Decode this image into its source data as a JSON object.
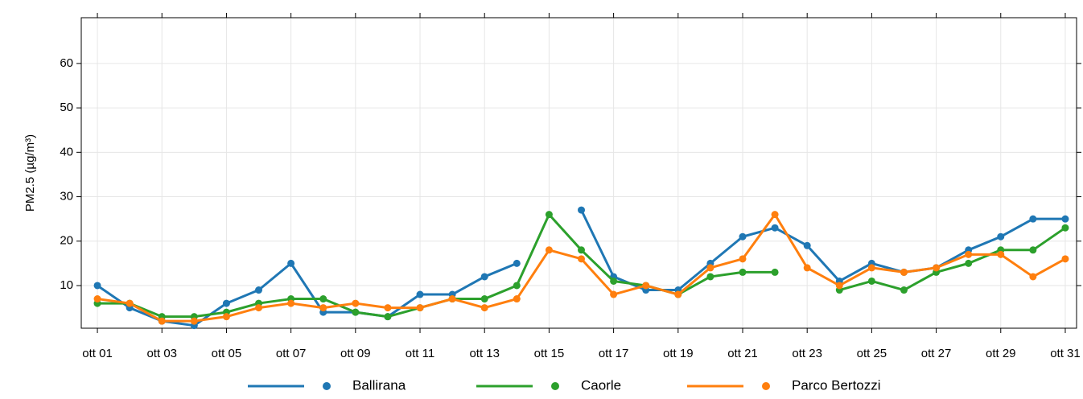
{
  "chart_data": {
    "type": "line",
    "y_label": "PM2.5 (µg/m³)",
    "x": [
      1,
      2,
      3,
      4,
      5,
      6,
      7,
      8,
      9,
      10,
      11,
      12,
      13,
      14,
      15,
      16,
      17,
      18,
      19,
      20,
      21,
      22,
      23,
      24,
      25,
      26,
      27,
      28,
      29,
      30,
      31
    ],
    "xlim": [
      0.5,
      31.35
    ],
    "xticks": [
      {
        "value": 1,
        "label": "ott 01"
      },
      {
        "value": 3,
        "label": "ott 03"
      },
      {
        "value": 5,
        "label": "ott 05"
      },
      {
        "value": 7,
        "label": "ott 07"
      },
      {
        "value": 9,
        "label": "ott 09"
      },
      {
        "value": 11,
        "label": "ott 11"
      },
      {
        "value": 13,
        "label": "ott 13"
      },
      {
        "value": 15,
        "label": "ott 15"
      },
      {
        "value": 17,
        "label": "ott 17"
      },
      {
        "value": 19,
        "label": "ott 19"
      },
      {
        "value": 21,
        "label": "ott 21"
      },
      {
        "value": 23,
        "label": "ott 23"
      },
      {
        "value": 25,
        "label": "ott 25"
      },
      {
        "value": 27,
        "label": "ott 27"
      },
      {
        "value": 29,
        "label": "ott 29"
      },
      {
        "value": 31,
        "label": "ott 31"
      }
    ],
    "ylim": [
      0.4,
      70.3
    ],
    "yticks": [
      10,
      20,
      30,
      40,
      50,
      60
    ],
    "grid": true,
    "legend": "bottom",
    "series": [
      {
        "name": "Ballirana",
        "color": "#1f77b4",
        "values": [
          10,
          5,
          2,
          1,
          6,
          9,
          15,
          4,
          4,
          3,
          8,
          8,
          12,
          15,
          null,
          27,
          12,
          9,
          9,
          15,
          21,
          23,
          19,
          11,
          15,
          13,
          14,
          18,
          21,
          25,
          25
        ]
      },
      {
        "name": "Caorle",
        "color": "#2ca02c",
        "values": [
          6,
          6,
          3,
          3,
          4,
          6,
          7,
          7,
          4,
          3,
          5,
          7,
          7,
          10,
          26,
          18,
          11,
          10,
          8,
          12,
          13,
          13,
          null,
          9,
          11,
          9,
          13,
          15,
          18,
          18,
          23
        ]
      },
      {
        "name": "Parco Bertozzi",
        "color": "#ff7f0e",
        "values": [
          7,
          6,
          2,
          2,
          3,
          5,
          6,
          5,
          6,
          5,
          5,
          7,
          5,
          7,
          18,
          16,
          8,
          10,
          8,
          14,
          16,
          26,
          14,
          10,
          14,
          13,
          14,
          17,
          17,
          12,
          16
        ]
      }
    ]
  }
}
